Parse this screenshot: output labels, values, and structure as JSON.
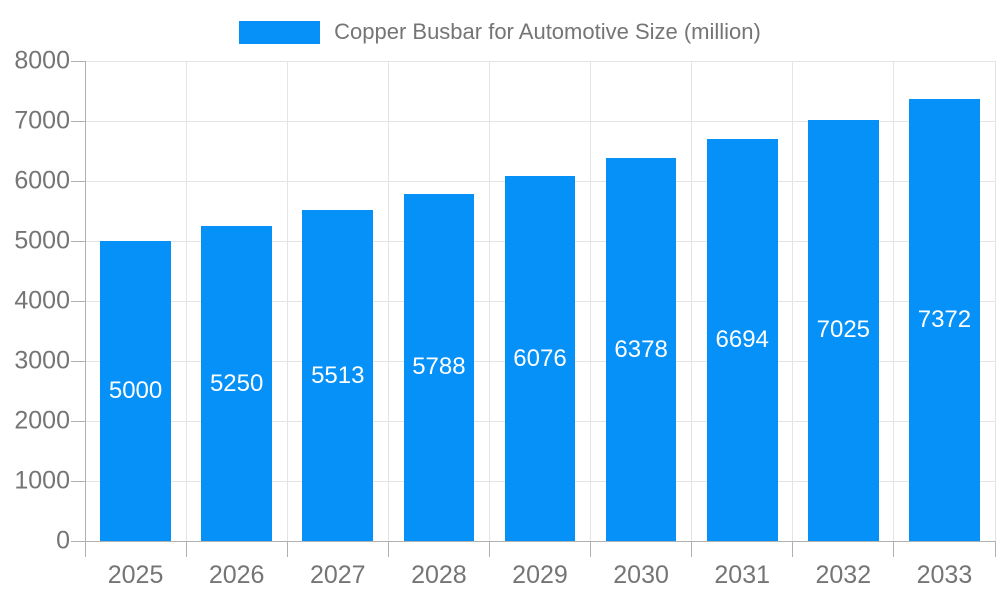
{
  "chart_data": {
    "type": "bar",
    "title": "Copper Busbar for Automotive Size (million)",
    "categories": [
      "2025",
      "2026",
      "2027",
      "2028",
      "2029",
      "2030",
      "2031",
      "2032",
      "2033"
    ],
    "values": [
      5000,
      5250,
      5513,
      5788,
      6076,
      6378,
      6694,
      7025,
      7372
    ],
    "series": [
      {
        "name": "Copper Busbar for Automotive Size (million)",
        "values": [
          5000,
          5250,
          5513,
          5788,
          6076,
          6378,
          6694,
          7025,
          7372
        ]
      }
    ],
    "xlabel": "",
    "ylabel": "",
    "ylim": [
      0,
      8000
    ],
    "y_ticks": [
      0,
      1000,
      2000,
      3000,
      4000,
      5000,
      6000,
      7000,
      8000
    ],
    "grid": true,
    "legend_position": "top",
    "value_labels": "inside-center"
  },
  "colors": {
    "bar": "#0591f8",
    "value_label": "#ffffff",
    "axis_text": "#757575",
    "legend_text": "#757575",
    "gridline": "#e4e4e4",
    "axis_line": "#b0b0b0"
  }
}
